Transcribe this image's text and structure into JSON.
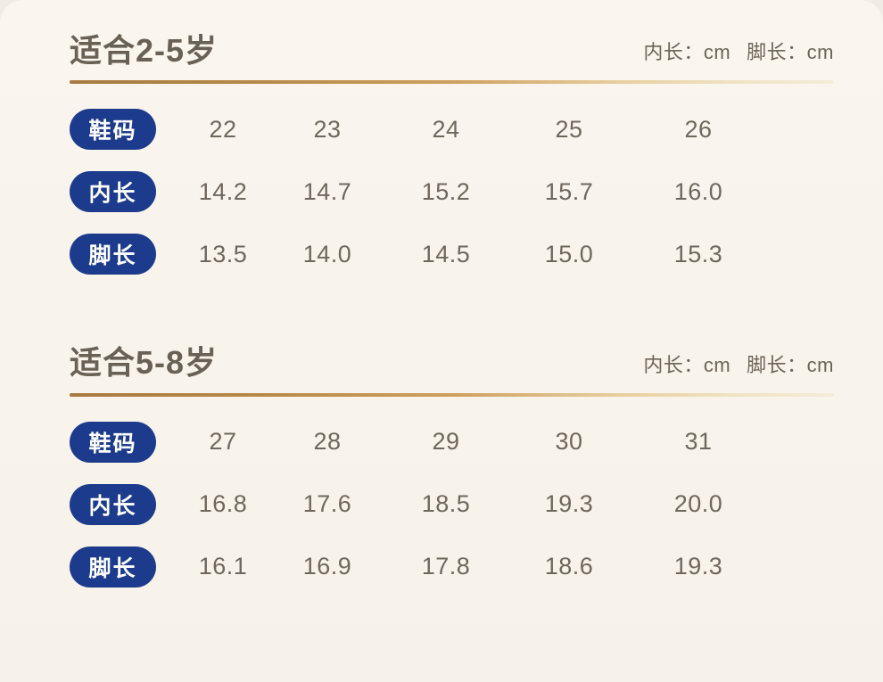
{
  "colors": {
    "card_background": "#f8f4ec",
    "pill_background": "#1c3b8c",
    "pill_text": "#ffffff",
    "body_text": "#6f675c",
    "title_text": "#6a6156",
    "divider_gold_start": "#a87a40",
    "divider_gold_end": "#f4ecd9"
  },
  "sections": [
    {
      "title": "适合2-5岁",
      "unit_inner": "内长：cm",
      "unit_foot": "脚长：cm",
      "rows": [
        {
          "label": "鞋码",
          "values": [
            "22",
            "23",
            "24",
            "25",
            "26"
          ]
        },
        {
          "label": "内长",
          "values": [
            "14.2",
            "14.7",
            "15.2",
            "15.7",
            "16.0"
          ]
        },
        {
          "label": "脚长",
          "values": [
            "13.5",
            "14.0",
            "14.5",
            "15.0",
            "15.3"
          ]
        }
      ]
    },
    {
      "title": "适合5-8岁",
      "unit_inner": "内长：cm",
      "unit_foot": "脚长：cm",
      "rows": [
        {
          "label": "鞋码",
          "values": [
            "27",
            "28",
            "29",
            "30",
            "31"
          ]
        },
        {
          "label": "内长",
          "values": [
            "16.8",
            "17.6",
            "18.5",
            "19.3",
            "20.0"
          ]
        },
        {
          "label": "脚长",
          "values": [
            "16.1",
            "16.9",
            "17.8",
            "18.6",
            "19.3"
          ]
        }
      ]
    }
  ],
  "chart_data": [
    {
      "type": "table",
      "title": "适合2-5岁",
      "units": "cm",
      "columns": [
        "鞋码",
        "22",
        "23",
        "24",
        "25",
        "26"
      ],
      "rows": [
        [
          "内长",
          14.2,
          14.7,
          15.2,
          15.7,
          16.0
        ],
        [
          "脚长",
          13.5,
          14.0,
          14.5,
          15.0,
          15.3
        ]
      ]
    },
    {
      "type": "table",
      "title": "适合5-8岁",
      "units": "cm",
      "columns": [
        "鞋码",
        "27",
        "28",
        "29",
        "30",
        "31"
      ],
      "rows": [
        [
          "内长",
          16.8,
          17.6,
          18.5,
          19.3,
          20.0
        ],
        [
          "脚长",
          16.1,
          16.9,
          17.8,
          18.6,
          19.3
        ]
      ]
    }
  ]
}
